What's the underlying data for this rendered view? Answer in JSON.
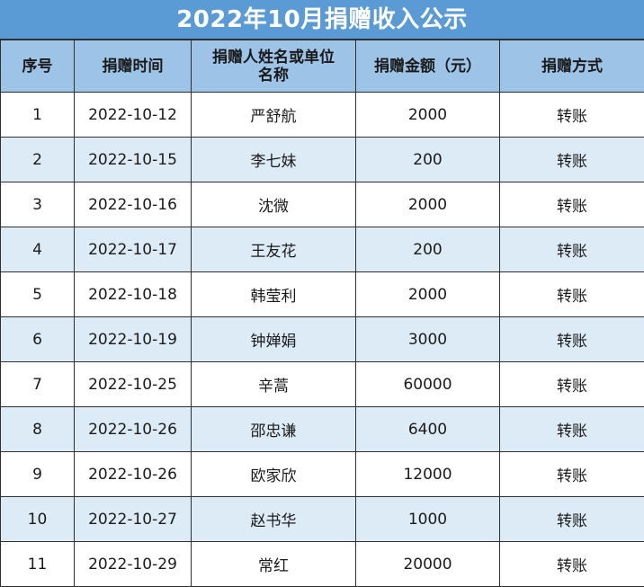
{
  "title": "2022年10月捐赠收入公示",
  "table": {
    "headers": [
      "序号",
      "捐赠时间",
      "捐赠人姓名或单位名称",
      "捐赠金额（元）",
      "捐赠方式"
    ],
    "header_lines": {
      "name_line1": "捐赠人姓名或单位",
      "name_line2": "名称"
    },
    "rows": [
      {
        "no": "1",
        "date": "2022-10-12",
        "name": "严舒航",
        "amount": "2000",
        "method": "转账"
      },
      {
        "no": "2",
        "date": "2022-10-15",
        "name": "李七妹",
        "amount": "200",
        "method": "转账"
      },
      {
        "no": "3",
        "date": "2022-10-16",
        "name": "沈微",
        "amount": "2000",
        "method": "转账"
      },
      {
        "no": "4",
        "date": "2022-10-17",
        "name": "王友花",
        "amount": "200",
        "method": "转账"
      },
      {
        "no": "5",
        "date": "2022-10-18",
        "name": "韩莹利",
        "amount": "2000",
        "method": "转账"
      },
      {
        "no": "6",
        "date": "2022-10-19",
        "name": "钟婵娟",
        "amount": "3000",
        "method": "转账"
      },
      {
        "no": "7",
        "date": "2022-10-25",
        "name": "辛蒿",
        "amount": "60000",
        "method": "转账"
      },
      {
        "no": "8",
        "date": "2022-10-26",
        "name": "邵忠谦",
        "amount": "6400",
        "method": "转账"
      },
      {
        "no": "9",
        "date": "2022-10-26",
        "name": "欧家欣",
        "amount": "12000",
        "method": "转账"
      },
      {
        "no": "10",
        "date": "2022-10-27",
        "name": "赵书华",
        "amount": "1000",
        "method": "转账"
      },
      {
        "no": "11",
        "date": "2022-10-29",
        "name": "常红",
        "amount": "20000",
        "method": "转账"
      }
    ]
  },
  "colors": {
    "title_bg": "#5b9bd5",
    "header_bg": "#9dc3e6",
    "stripe_bg": "#ddebf7",
    "border": "#2f2f2f"
  }
}
